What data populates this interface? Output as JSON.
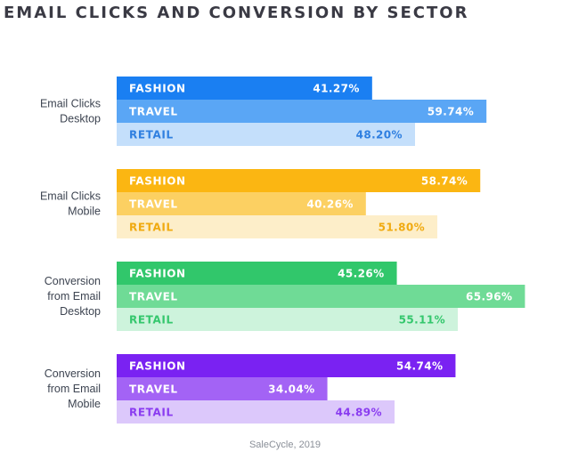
{
  "chart_data": {
    "type": "bar",
    "title": "EMAIL CLICKS AND CONVERSION BY SECTOR",
    "source": "SaleCycle, 2019",
    "value_suffix": "%",
    "groups": [
      {
        "label_lines": [
          "Email Clicks",
          "Desktop"
        ],
        "colors": [
          "#1a7ff2",
          "#5aa6f5",
          "#c4dffb"
        ],
        "text_colors": [
          "#ffffff",
          "#ffffff",
          "#2f7fe0"
        ],
        "bars": [
          {
            "category": "FASHION",
            "value": 41.27
          },
          {
            "category": "TRAVEL",
            "value": 59.74
          },
          {
            "category": "RETAIL",
            "value": 48.2
          }
        ]
      },
      {
        "label_lines": [
          "Email Clicks",
          "Mobile"
        ],
        "colors": [
          "#fbb612",
          "#fcd062",
          "#fdeec9"
        ],
        "text_colors": [
          "#ffffff",
          "#ffffff",
          "#f0aa10"
        ],
        "bars": [
          {
            "category": "FASHION",
            "value": 58.74
          },
          {
            "category": "TRAVEL",
            "value": 40.26
          },
          {
            "category": "RETAIL",
            "value": 51.8
          }
        ]
      },
      {
        "label_lines": [
          "Conversion",
          "from Email",
          "Desktop"
        ],
        "colors": [
          "#31c76b",
          "#6fdb96",
          "#cdf3dc"
        ],
        "text_colors": [
          "#ffffff",
          "#ffffff",
          "#34c76d"
        ],
        "bars": [
          {
            "category": "FASHION",
            "value": 45.26
          },
          {
            "category": "TRAVEL",
            "value": 65.96
          },
          {
            "category": "RETAIL",
            "value": 55.11
          }
        ]
      },
      {
        "label_lines": [
          "Conversion",
          "from Email",
          "Mobile"
        ],
        "colors": [
          "#7a22f2",
          "#a363f5",
          "#dcc8fb"
        ],
        "text_colors": [
          "#ffffff",
          "#ffffff",
          "#8a3cf0"
        ],
        "bars": [
          {
            "category": "FASHION",
            "value": 54.74
          },
          {
            "category": "TRAVEL",
            "value": 34.04
          },
          {
            "category": "RETAIL",
            "value": 44.89
          }
        ]
      }
    ]
  }
}
